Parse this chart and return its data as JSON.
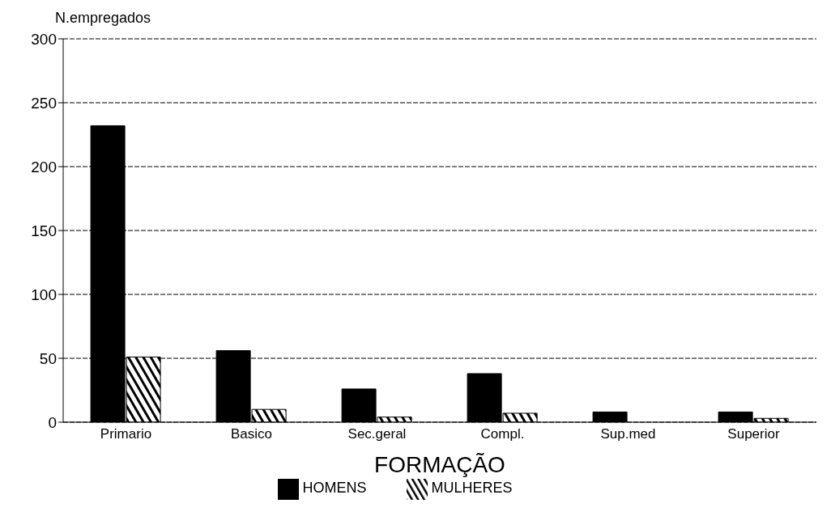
{
  "chart_data": {
    "type": "bar",
    "ylabel": "N.empregados",
    "xlabel": "FORMAÇÃO",
    "categories": [
      "Primario",
      "Basico",
      "Sec.geral",
      "Compl.",
      "Sup.med",
      "Superior"
    ],
    "series": [
      {
        "name": "HOMENS",
        "color": "#000000",
        "values": [
          232,
          56,
          26,
          38,
          8,
          8
        ]
      },
      {
        "name": "MULHERES",
        "color": "#000000",
        "values": [
          51,
          10,
          4,
          7,
          null,
          3
        ]
      }
    ],
    "ylim": [
      0,
      300
    ],
    "yticks": [
      0,
      50,
      100,
      150,
      200,
      250,
      300
    ],
    "grid": "y",
    "legend": "bottom"
  }
}
